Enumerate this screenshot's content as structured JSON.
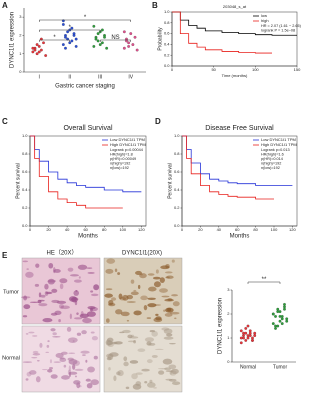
{
  "chart_data": [
    {
      "type": "dot",
      "label": "A",
      "ylabel": "DYNC1I1 expression",
      "xlabel": "Gastric cancer staging",
      "categories": [
        "I",
        "II",
        "III",
        "IV"
      ],
      "groups": [
        {
          "color": "#e8343a",
          "values": [
            1.1,
            1.3,
            1.0,
            1.4,
            1.2,
            1.6,
            0.9,
            1.3,
            1.2,
            1.5,
            1.1,
            1.8
          ]
        },
        {
          "color": "#2a4fd6",
          "values": [
            1.5,
            2.0,
            1.8,
            2.3,
            1.7,
            2.1,
            1.4,
            2.6,
            1.9,
            2.2,
            1.6,
            2.4,
            2.0,
            1.8,
            2.8,
            1.3
          ]
        },
        {
          "color": "#2e9e3c",
          "values": [
            1.4,
            1.9,
            1.7,
            2.2,
            1.6,
            2.0,
            1.3,
            2.5,
            1.8,
            2.1,
            1.5,
            2.3,
            1.9
          ]
        },
        {
          "color": "#e0508c",
          "values": [
            1.3,
            1.8,
            1.6,
            2.1,
            1.5,
            1.9,
            1.2,
            2.2,
            1.7,
            1.4
          ]
        }
      ],
      "ylim": [
        0,
        3.5
      ],
      "yticks": [
        0,
        1,
        2,
        3
      ],
      "annotations": [
        "*",
        "*",
        "*",
        "NS"
      ]
    },
    {
      "type": "km",
      "label": "B",
      "title": "203048_s_at",
      "xlabel": "Time (months)",
      "ylabel": "Probability",
      "xlim": [
        0,
        150
      ],
      "xticks": [
        0,
        50,
        100,
        150
      ],
      "ylim": [
        0,
        1
      ],
      "yticks": [
        {
          "value": 0,
          "label": "0.0"
        },
        0.2,
        0.4,
        0.6,
        0.8,
        {
          "value": 1,
          "label": "1.0"
        }
      ],
      "annotations": [
        "HR = 2.07 (1.61 − 2.65)",
        "logrank P = 1.5e−08"
      ],
      "series": [
        {
          "name": "low",
          "color": "#000000",
          "x": [
            0,
            10,
            20,
            30,
            40,
            60,
            80,
            100,
            120,
            150
          ],
          "values": [
            1,
            0.85,
            0.75,
            0.7,
            0.65,
            0.62,
            0.6,
            0.58,
            0.57,
            0.57
          ]
        },
        {
          "name": "high",
          "color": "#e8201c",
          "x": [
            0,
            10,
            20,
            30,
            40,
            60,
            80,
            100,
            120
          ],
          "values": [
            1,
            0.6,
            0.42,
            0.35,
            0.3,
            0.27,
            0.25,
            0.24,
            0.24
          ]
        }
      ]
    },
    {
      "type": "km",
      "label": "C",
      "title": "Overall Survival",
      "xlabel": "Months",
      "ylabel": "Percent survival",
      "xlim": [
        0,
        125
      ],
      "xticks": [
        0,
        20,
        40,
        60,
        80,
        100,
        120
      ],
      "ylim": [
        0,
        1
      ],
      "yticks": [
        {
          "value": 0,
          "label": "0.0"
        },
        0.2,
        0.4,
        0.6,
        0.8,
        {
          "value": 1,
          "label": "1.0"
        }
      ],
      "annotations": [
        "Logrank p=0.00044",
        "HR(high)=1.8",
        "p(HR)=0.00049",
        "n(high)=192",
        "n(low)=192"
      ],
      "series": [
        {
          "name": "Low DYNC1I1 TPM",
          "color": "#2432d8",
          "x": [
            0,
            5,
            10,
            20,
            30,
            40,
            50,
            60,
            80,
            100,
            120
          ],
          "values": [
            1,
            0.85,
            0.72,
            0.6,
            0.52,
            0.48,
            0.45,
            0.43,
            0.4,
            0.38,
            0.38
          ]
        },
        {
          "name": "High DYNC1I1 TPM",
          "color": "#e8201c",
          "x": [
            0,
            5,
            10,
            20,
            30,
            40,
            50,
            60,
            80,
            100
          ],
          "values": [
            1,
            0.75,
            0.55,
            0.38,
            0.3,
            0.26,
            0.23,
            0.2,
            0.2,
            0.2
          ]
        }
      ]
    },
    {
      "type": "km",
      "label": "D",
      "title": "Disease Free Survival",
      "xlabel": "Months",
      "ylabel": "Percent survival",
      "xlim": [
        0,
        125
      ],
      "xticks": [
        0,
        20,
        40,
        60,
        80,
        100,
        120
      ],
      "ylim": [
        0,
        1
      ],
      "yticks": [
        {
          "value": 0,
          "label": "0.0"
        },
        0.2,
        0.4,
        0.6,
        0.8,
        {
          "value": 1,
          "label": "1.0"
        }
      ],
      "annotations": [
        "Logrank p=0.013",
        "HR(high)=1.6",
        "p(HR)=0.014",
        "n(high)=192",
        "n(low)=192"
      ],
      "series": [
        {
          "name": "Low DYNC1I1 TPM",
          "color": "#2432d8",
          "x": [
            0,
            5,
            10,
            20,
            30,
            40,
            50,
            60,
            80,
            100,
            120
          ],
          "values": [
            1,
            0.85,
            0.7,
            0.58,
            0.52,
            0.5,
            0.48,
            0.47,
            0.45,
            0.45,
            0.45
          ]
        },
        {
          "name": "High DYNC1I1 TPM",
          "color": "#e8201c",
          "x": [
            0,
            5,
            10,
            20,
            30,
            40,
            50,
            60,
            80,
            100
          ],
          "values": [
            1,
            0.75,
            0.58,
            0.45,
            0.38,
            0.35,
            0.33,
            0.32,
            0.3,
            0.3
          ]
        }
      ]
    },
    {
      "type": "dot",
      "ylabel": "DYNC1I1 expression",
      "categories": [
        "Normal",
        "Tumor"
      ],
      "groups": [
        {
          "color": "#e8343a",
          "values": [
            1.0,
            1.2,
            0.9,
            1.1,
            1.3,
            1.0,
            1.2,
            0.8,
            1.1,
            1.4,
            1.0,
            1.2,
            0.9,
            1.1,
            1.3,
            1.0,
            1.2,
            1.5,
            1.1,
            0.9
          ]
        },
        {
          "color": "#2e9e3c",
          "values": [
            1.6,
            1.9,
            1.5,
            2.1,
            1.8,
            2.3,
            1.7,
            2.0,
            1.4,
            2.2,
            1.9,
            1.6,
            2.4,
            1.8,
            2.0,
            1.5,
            2.1,
            1.7,
            1.9,
            2.2
          ]
        }
      ],
      "ylim": [
        0,
        3
      ],
      "yticks": [
        0,
        1,
        2,
        3
      ],
      "annotations": [
        "**"
      ]
    }
  ],
  "figure_e": {
    "label": "E",
    "columns": [
      "HE（20X）",
      "DYNC1I1(20X)"
    ],
    "rows": [
      "Tumor",
      "Normal"
    ]
  }
}
